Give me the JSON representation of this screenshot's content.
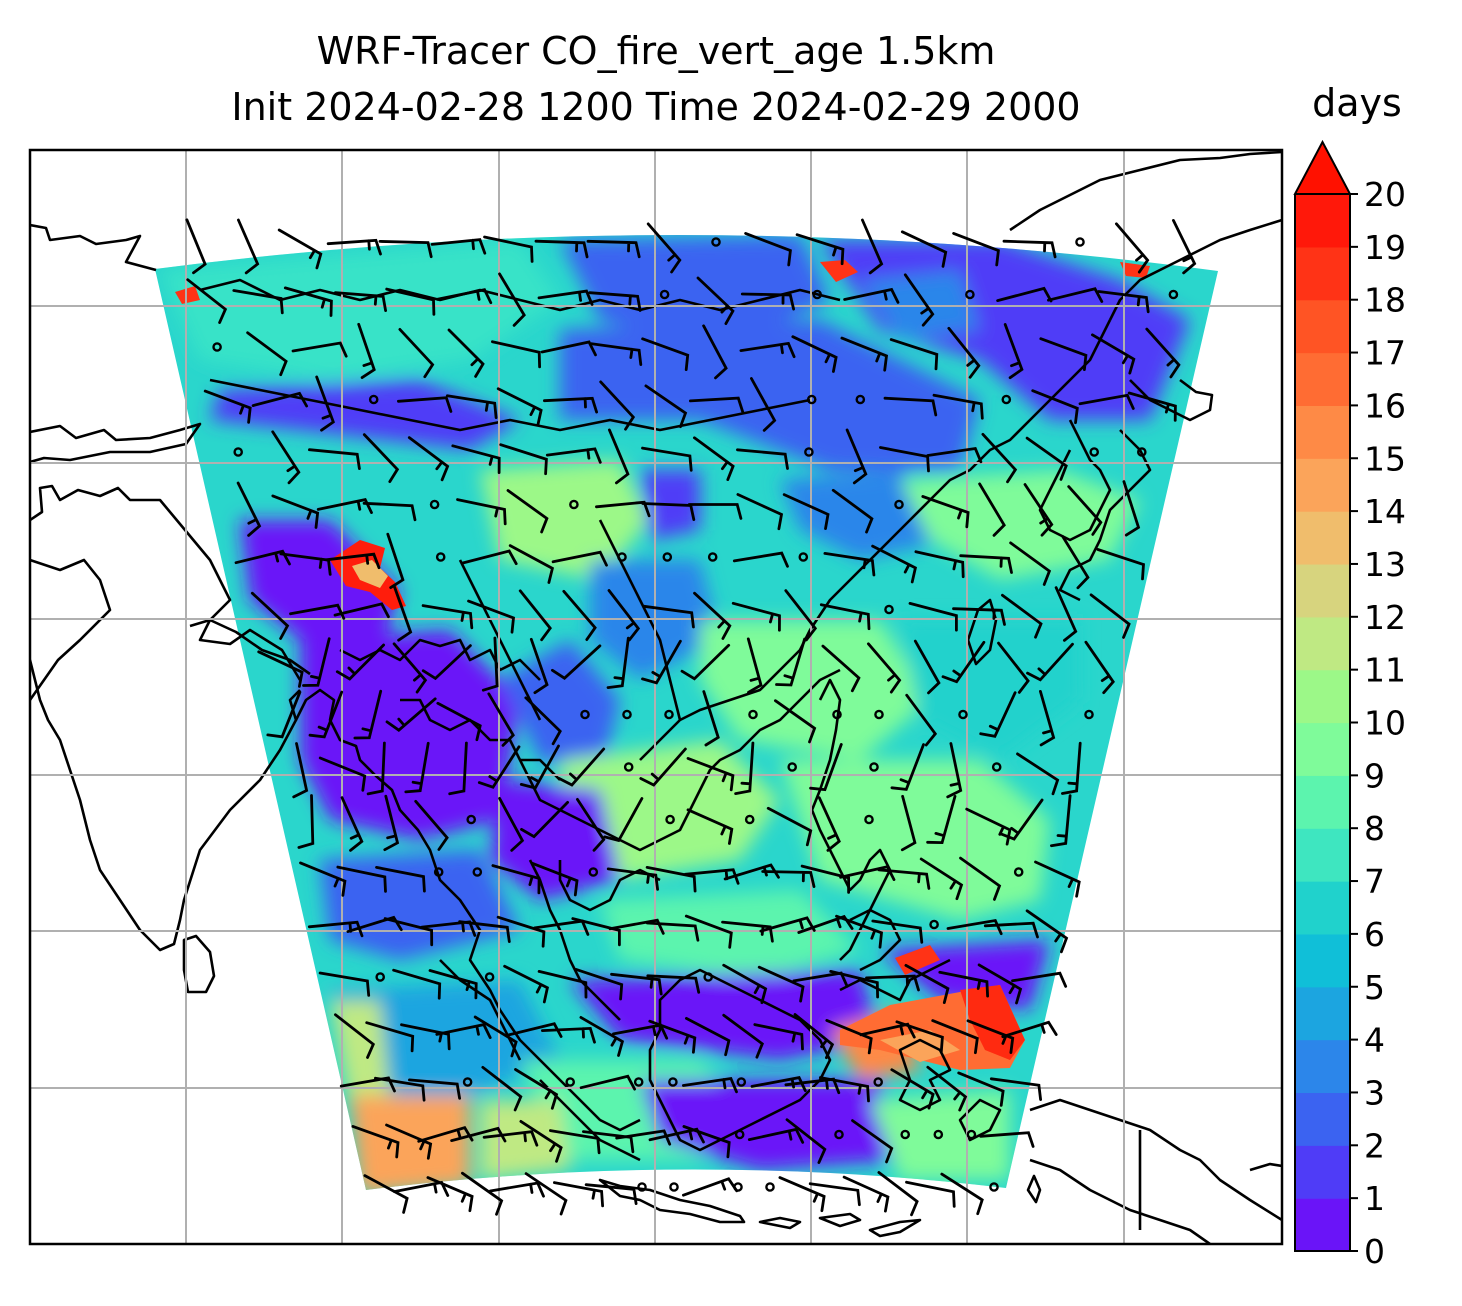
{
  "title": {
    "line1": "WRF-Tracer CO_fire_vert_age 1.5km",
    "line2": "Init 2024-02-28 1200 Time 2024-02-29 2000"
  },
  "colorbar": {
    "units": "days",
    "min": 0,
    "max": 20,
    "extend": "max",
    "extend_color": "#ff1100",
    "ticks": [
      "0",
      "1",
      "2",
      "3",
      "4",
      "5",
      "6",
      "7",
      "8",
      "9",
      "10",
      "11",
      "12",
      "13",
      "14",
      "15",
      "16",
      "17",
      "18",
      "19",
      "20"
    ],
    "colors": [
      "#6a14f8",
      "#4f3cf7",
      "#3b63f1",
      "#2c86ea",
      "#1ca5e0",
      "#10bfd8",
      "#20d2cc",
      "#3ee6c0",
      "#5cf4ae",
      "#7ffb9a",
      "#9cf888",
      "#bfe983",
      "#d7d47e",
      "#f0bd6c",
      "#fba45a",
      "#fe8a46",
      "#ff6c33",
      "#ff5424",
      "#ff3316",
      "#ff180a"
    ]
  },
  "map": {
    "projection": "lambert-conformal",
    "gridlines": true,
    "features": [
      "coastlines",
      "country-borders",
      "wind-barbs",
      "calm-wind-circles"
    ]
  }
}
